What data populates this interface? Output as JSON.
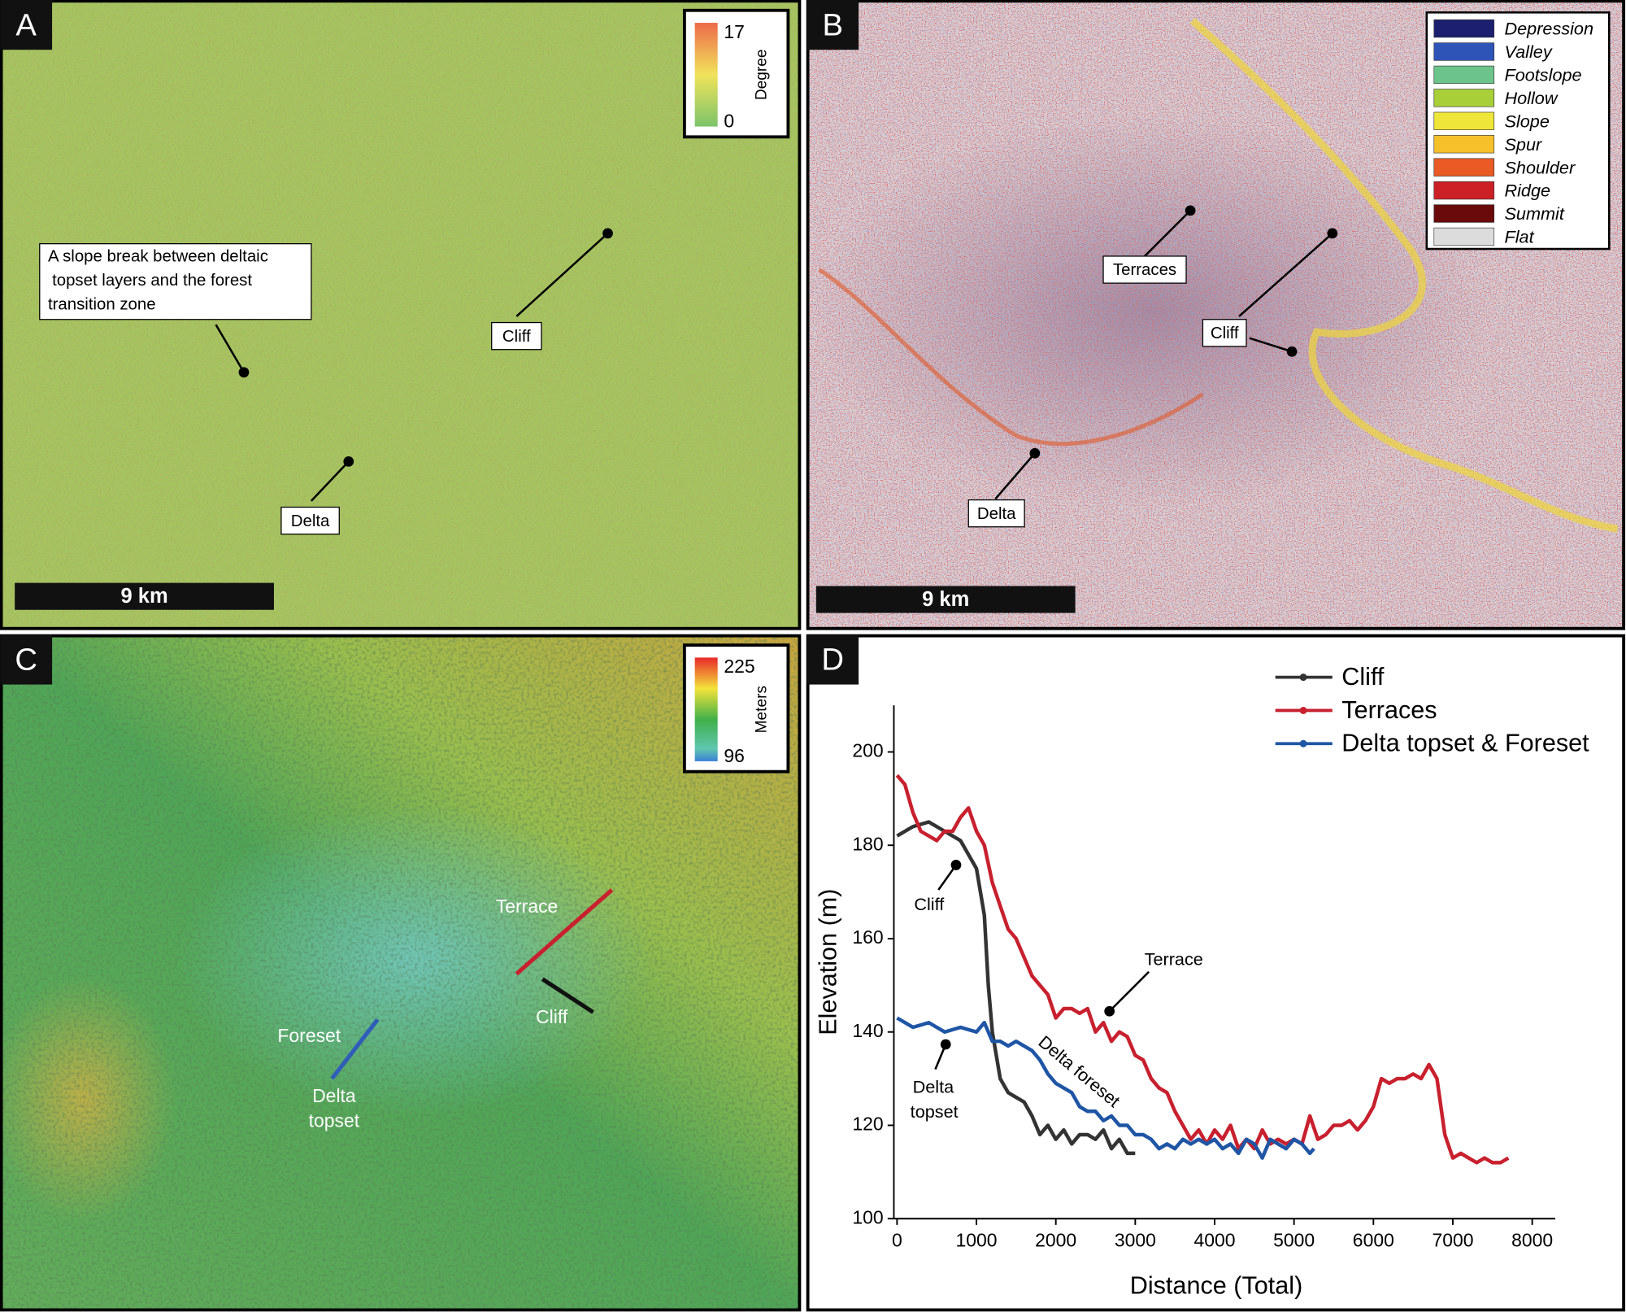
{
  "letters": [
    "A",
    "B",
    "C",
    "D"
  ],
  "panel_a": {
    "colorbar": {
      "max": 17,
      "min": 0,
      "label": "Degree"
    },
    "note_lines": [
      "A slope break between deltaic",
      "topset layers and the forest",
      "transition zone"
    ],
    "labels": [
      "Cliff",
      "Delta"
    ],
    "scale_bar": "9 km"
  },
  "panel_b": {
    "legend": [
      {
        "name": "Depression",
        "color": "#1c1f6e"
      },
      {
        "name": "Valley",
        "color": "#2e54b8"
      },
      {
        "name": "Footslope",
        "color": "#6cc48a"
      },
      {
        "name": "Hollow",
        "color": "#a9cf38"
      },
      {
        "name": "Slope",
        "color": "#efe63a"
      },
      {
        "name": "Spur",
        "color": "#f5c02a"
      },
      {
        "name": "Shoulder",
        "color": "#ea5a25"
      },
      {
        "name": "Ridge",
        "color": "#cc2027"
      },
      {
        "name": "Summit",
        "color": "#6a0a0a"
      },
      {
        "name": "Flat",
        "color": "#dcdcdc"
      }
    ],
    "labels": [
      "Terraces",
      "Cliff",
      "Delta"
    ],
    "scale_bar": "9 km"
  },
  "panel_c": {
    "colorbar": {
      "max": 225,
      "min": 96,
      "label": "Meters"
    },
    "labels": [
      "Terrace",
      "Cliff",
      "Foreset",
      "Delta",
      "topset"
    ]
  },
  "chart_data": {
    "type": "line",
    "x_label": "Distance (Total)",
    "y_label": "Elevation (m)",
    "xlim": [
      -40,
      8290
    ],
    "ylim": [
      100,
      210
    ],
    "xticks": [
      0,
      1000,
      2000,
      3000,
      4000,
      5000,
      6000,
      7000,
      8000
    ],
    "yticks": [
      100,
      120,
      140,
      160,
      180,
      200
    ],
    "grid": false,
    "legend": "upper right",
    "annotations": [
      "Cliff",
      "Terrace",
      "Delta foreset",
      "Delta",
      "topset"
    ],
    "series": [
      {
        "name": "Cliff",
        "color": "#333333",
        "x": [
          0,
          200,
          400,
          600,
          800,
          1000,
          1100,
          1150,
          1200,
          1250,
          1300,
          1400,
          1500,
          1600,
          1700,
          1800,
          1900,
          2000,
          2100,
          2200,
          2300,
          2400,
          2500,
          2600,
          2700,
          2800,
          2900,
          3000
        ],
        "values": [
          182,
          184,
          185,
          183,
          181,
          175,
          165,
          150,
          140,
          135,
          130,
          127,
          126,
          125,
          122,
          118,
          120,
          117,
          119,
          116,
          118,
          118,
          117,
          119,
          115,
          117,
          114,
          114
        ]
      },
      {
        "name": "Terraces",
        "color": "#c8202e",
        "x": [
          0,
          100,
          200,
          300,
          400,
          500,
          600,
          700,
          800,
          900,
          1000,
          1100,
          1200,
          1300,
          1400,
          1500,
          1600,
          1700,
          1800,
          1900,
          2000,
          2100,
          2200,
          2300,
          2400,
          2500,
          2600,
          2700,
          2800,
          2900,
          3000,
          3100,
          3200,
          3300,
          3400,
          3500,
          3600,
          3700,
          3800,
          3900,
          4000,
          4100,
          4200,
          4300,
          4400,
          4500,
          4600,
          4700,
          4800,
          4900,
          5000,
          5100,
          5200,
          5300,
          5400,
          5500,
          5600,
          5700,
          5800,
          5900,
          6000,
          6100,
          6200,
          6300,
          6400,
          6500,
          6600,
          6700,
          6800,
          6900,
          7000,
          7100,
          7200,
          7300,
          7400,
          7500,
          7600,
          7700
        ],
        "values": [
          195,
          193,
          187,
          183,
          182,
          181,
          183,
          183,
          186,
          188,
          183,
          180,
          172,
          167,
          162,
          160,
          156,
          152,
          150,
          148,
          143,
          145,
          145,
          144,
          145,
          140,
          142,
          138,
          140,
          139,
          135,
          134,
          130,
          128,
          127,
          123,
          120,
          117,
          119,
          116,
          119,
          117,
          120,
          115,
          117,
          115,
          119,
          116,
          117,
          116,
          117,
          116,
          122,
          117,
          118,
          120,
          120,
          121,
          119,
          121,
          124,
          130,
          129,
          130,
          130,
          131,
          130,
          133,
          130,
          118,
          113,
          114,
          113,
          112,
          113,
          112,
          112,
          113
        ]
      },
      {
        "name": "Delta topset & Foreset",
        "color": "#1f55a5",
        "x": [
          0,
          200,
          400,
          600,
          800,
          1000,
          1100,
          1200,
          1300,
          1400,
          1500,
          1600,
          1700,
          1800,
          1900,
          2000,
          2100,
          2200,
          2300,
          2400,
          2500,
          2600,
          2700,
          2800,
          2900,
          3000,
          3100,
          3200,
          3300,
          3400,
          3500,
          3600,
          3700,
          3800,
          3900,
          4000,
          4100,
          4200,
          4300,
          4400,
          4500,
          4600,
          4700,
          4800,
          4900,
          5000,
          5100,
          5200,
          5250
        ],
        "values": [
          143,
          141,
          142,
          140,
          141,
          140,
          142,
          138,
          138,
          137,
          138,
          137,
          136,
          134,
          131,
          129,
          128,
          127,
          124,
          123,
          123,
          121,
          122,
          120,
          120,
          118,
          118,
          117,
          115,
          116,
          115,
          117,
          116,
          117,
          116,
          117,
          115,
          116,
          114,
          117,
          116,
          113,
          117,
          116,
          115,
          117,
          116,
          114,
          115
        ]
      }
    ]
  }
}
